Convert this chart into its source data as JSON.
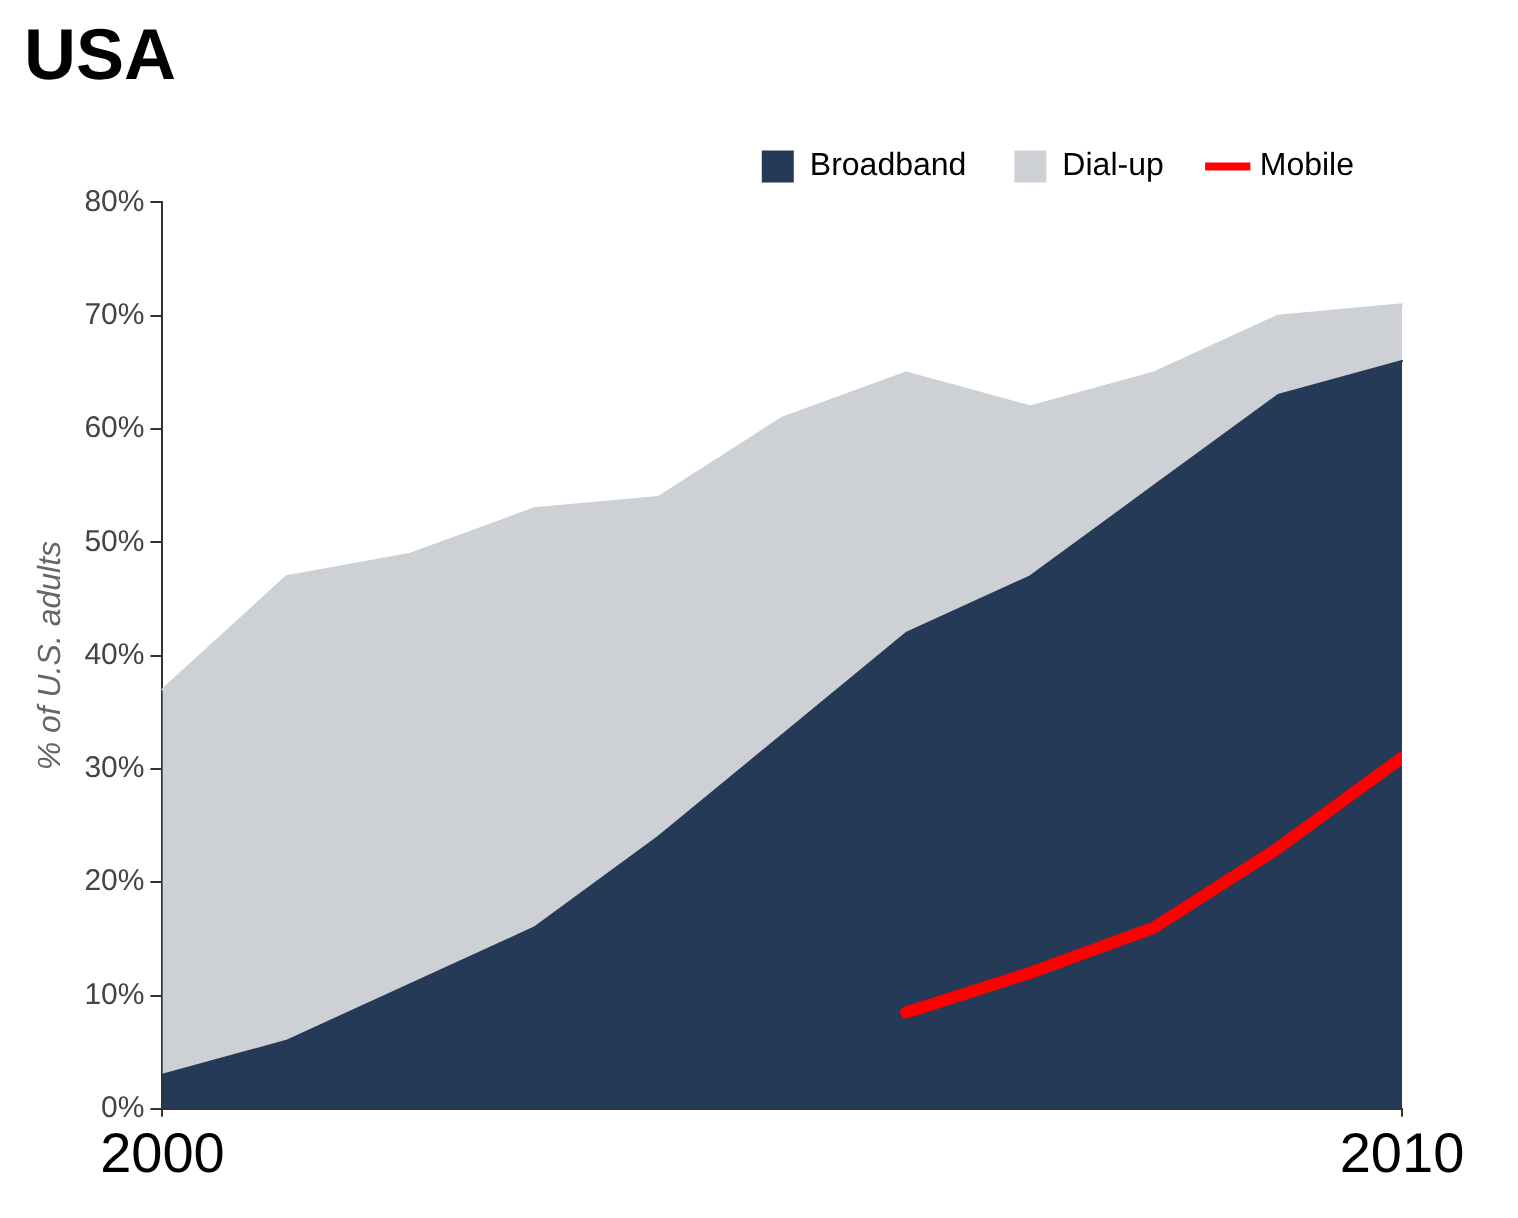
{
  "chart_data": {
    "type": "area",
    "title": "USA",
    "ylabel": "% of U.S. adults",
    "stacked": true,
    "x": [
      2000,
      2001,
      2002,
      2003,
      2004,
      2005,
      2006,
      2007,
      2008,
      2009,
      2010
    ],
    "series": [
      {
        "name": "Broadband",
        "color": "#253a56",
        "values": [
          3,
          6,
          11,
          16,
          24,
          33,
          42,
          47,
          55,
          63,
          66
        ]
      },
      {
        "name": "Dial-up",
        "color": "#cdd0d5",
        "values": [
          34,
          41,
          38,
          37,
          30,
          28,
          23,
          15,
          10,
          7,
          5
        ]
      },
      {
        "name": "Mobile",
        "type": "line",
        "color": "#ff0000",
        "values": [
          null,
          null,
          null,
          null,
          null,
          null,
          8.5,
          12,
          16,
          23,
          31
        ]
      }
    ],
    "xlim": [
      2000,
      2010
    ],
    "xticks": [
      2000,
      2010
    ],
    "ylim": [
      0,
      80
    ],
    "yticks": [
      {
        "value": 0,
        "label": "0%"
      },
      {
        "value": 10,
        "label": "10%"
      },
      {
        "value": 20,
        "label": "20%"
      },
      {
        "value": 30,
        "label": "30%"
      },
      {
        "value": 40,
        "label": "40%"
      },
      {
        "value": 50,
        "label": "50%"
      },
      {
        "value": 60,
        "label": "60%"
      },
      {
        "value": 70,
        "label": "70%"
      },
      {
        "value": 80,
        "label": "80%"
      }
    ],
    "grid": false,
    "legend": "top right",
    "marker": "none",
    "line_style": "solid"
  }
}
